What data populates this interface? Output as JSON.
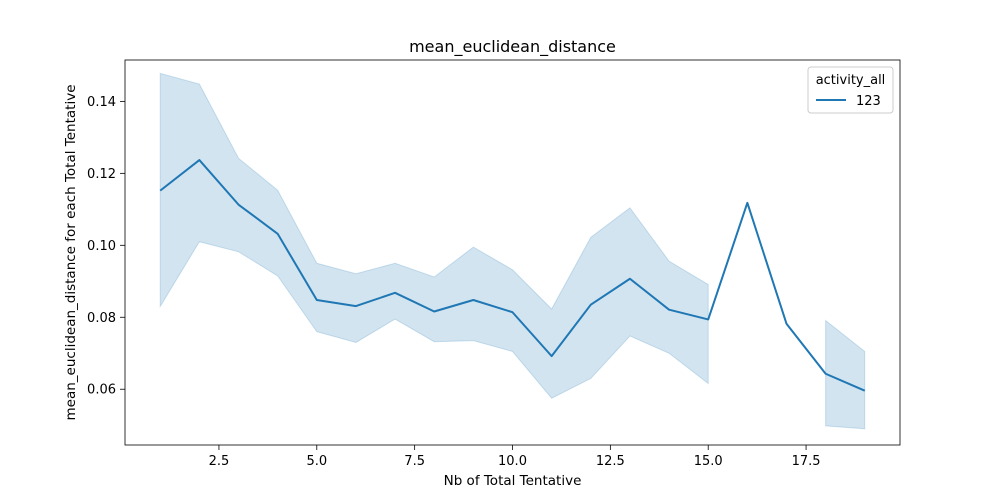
{
  "chart_data": {
    "type": "line",
    "title": "mean_euclidean_distance",
    "xlabel": "Nb of Total Tentative",
    "ylabel": "mean_euclidean_distance for each Total Tentative",
    "xlim": [
      0.1,
      19.9
    ],
    "ylim": [
      0.0445,
      0.1515
    ],
    "xticks": [
      2.5,
      5.0,
      7.5,
      10.0,
      12.5,
      15.0,
      17.5
    ],
    "xtick_labels": [
      "2.5",
      "5.0",
      "7.5",
      "10.0",
      "12.5",
      "15.0",
      "17.5"
    ],
    "yticks": [
      0.06,
      0.08,
      0.1,
      0.12,
      0.14
    ],
    "ytick_labels": [
      "0.06",
      "0.08",
      "0.10",
      "0.12",
      "0.14"
    ],
    "grid": false,
    "legend": {
      "title": "activity_all",
      "placement": "top-right"
    },
    "series": [
      {
        "name": "123",
        "color": "#1f77b4",
        "x": [
          1,
          2,
          3,
          4,
          5,
          6,
          7,
          8,
          9,
          10,
          11,
          12,
          13,
          14,
          15,
          16,
          17,
          18,
          19
        ],
        "y": [
          0.1152,
          0.1237,
          0.1113,
          0.1032,
          0.0848,
          0.0831,
          0.0868,
          0.0816,
          0.0848,
          0.0814,
          0.0692,
          0.0835,
          0.0907,
          0.0821,
          0.0794,
          0.1118,
          0.0782,
          0.0643,
          0.0596
        ],
        "ci_segments": [
          {
            "x": [
              1,
              2,
              3,
              4,
              5,
              6,
              7,
              8,
              9,
              10,
              11,
              12,
              13,
              14,
              15
            ],
            "upper": [
              0.1478,
              0.1448,
              0.1242,
              0.1153,
              0.095,
              0.0921,
              0.095,
              0.0912,
              0.0995,
              0.0932,
              0.0823,
              0.1022,
              0.1104,
              0.0956,
              0.0891
            ],
            "lower": [
              0.083,
              0.101,
              0.0982,
              0.0915,
              0.076,
              0.073,
              0.0795,
              0.0732,
              0.0735,
              0.0705,
              0.0575,
              0.063,
              0.0748,
              0.07,
              0.0616
            ]
          },
          {
            "x": [
              18,
              19
            ],
            "upper": [
              0.0791,
              0.0705
            ],
            "lower": [
              0.0498,
              0.049
            ]
          }
        ]
      }
    ]
  }
}
